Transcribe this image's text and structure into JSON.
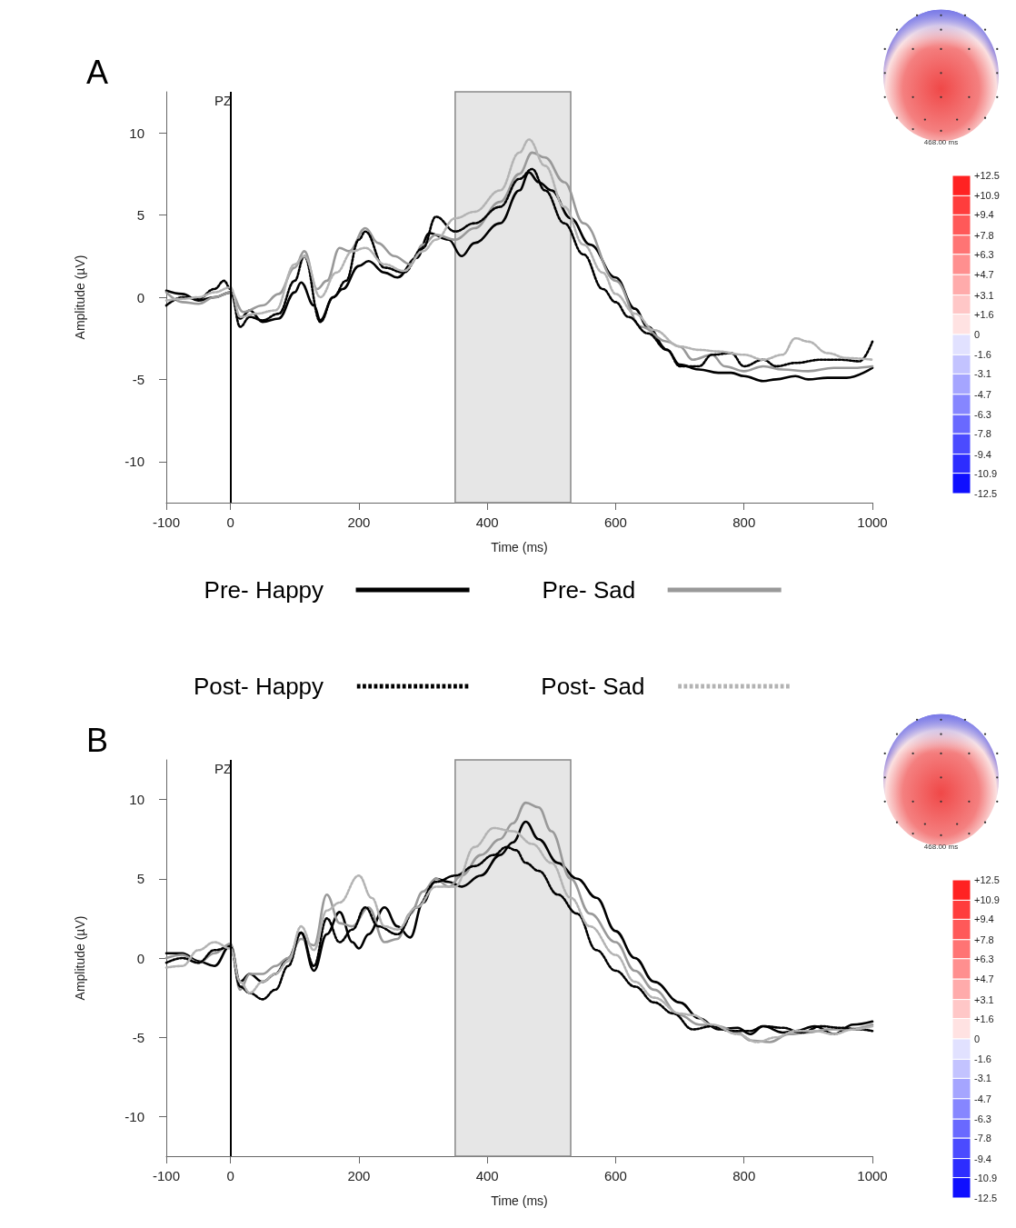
{
  "chart_data": [
    {
      "type": "line",
      "title": "A",
      "xlabel": "Time (ms)",
      "ylabel": "Amplitude (µV)",
      "annotations": [
        "PZ",
        "468.00 ms"
      ],
      "xlim": [
        -100,
        1000
      ],
      "xticks": [
        -100,
        0,
        200,
        400,
        600,
        800,
        1000
      ],
      "ylim": [
        -12.5,
        12.5
      ],
      "yticks": [
        -10,
        -5,
        0,
        5,
        10
      ],
      "grid": false,
      "legend": "bottom",
      "marker": "none",
      "clim": [
        -12.5,
        12.5
      ],
      "cticks": [
        {
          "value": 12.5,
          "label": "+12.5"
        },
        {
          "value": 10.9,
          "label": "+10.9"
        },
        {
          "value": 9.4,
          "label": "+9.4"
        },
        {
          "value": 7.8,
          "label": "+7.8"
        },
        {
          "value": 6.3,
          "label": "+6.3"
        },
        {
          "value": 4.7,
          "label": "+4.7"
        },
        {
          "value": 3.1,
          "label": "+3.1"
        },
        {
          "value": 1.6,
          "label": "+1.6"
        },
        0,
        -1.6,
        -3.1,
        -4.7,
        -6.3,
        -7.8,
        -9.4,
        -10.9,
        -12.5
      ],
      "bands": [
        {
          "axis": "x",
          "from": 350,
          "to": 530,
          "color": "#e6e6e6"
        }
      ],
      "ref_lines": [
        {
          "axis": "x",
          "value": 0,
          "color": "#000000"
        }
      ],
      "series": [
        {
          "name": "Pre- Happy",
          "color": "#000000",
          "line_style": "solid",
          "x": [
            -100,
            -75,
            -50,
            -25,
            0,
            15,
            30,
            50,
            75,
            100,
            110,
            130,
            140,
            160,
            175,
            200,
            215,
            240,
            260,
            290,
            310,
            340,
            360,
            380,
            420,
            450,
            465,
            480,
            500,
            530,
            560,
            600,
            630,
            650,
            680,
            700,
            730,
            760,
            780,
            800,
            830,
            850,
            880,
            900,
            930,
            960,
            1000
          ],
          "values": [
            0.4,
            0.2,
            -0.2,
            0,
            0.3,
            -1.3,
            -0.8,
            -1.5,
            -1.3,
            0.3,
            0.9,
            -0.5,
            -1.4,
            0,
            0.5,
            1.9,
            2.2,
            1.5,
            1.2,
            2.4,
            3.9,
            3.5,
            2.5,
            3.3,
            4.5,
            6.5,
            7.6,
            7.0,
            6.5,
            4.8,
            3.2,
            1.2,
            -0.7,
            -1.8,
            -3.2,
            -4.1,
            -4.4,
            -4.6,
            -4.6,
            -4.8,
            -5.1,
            -5.0,
            -4.8,
            -5.0,
            -4.9,
            -4.9,
            -4.3
          ]
        },
        {
          "name": "Pre- Sad",
          "color": "#999999",
          "line_style": "solid",
          "x": [
            -100,
            -75,
            -50,
            -25,
            0,
            20,
            50,
            75,
            100,
            115,
            135,
            150,
            170,
            185,
            210,
            230,
            255,
            280,
            300,
            320,
            350,
            380,
            420,
            450,
            470,
            490,
            520,
            550,
            600,
            640,
            680,
            700,
            720,
            750,
            770,
            800,
            830,
            860,
            900,
            940,
            970,
            1000
          ],
          "values": [
            0.3,
            -0.3,
            -0.4,
            0,
            0.3,
            -0.9,
            -0.5,
            0.2,
            1.8,
            2.8,
            0.5,
            1.0,
            3.0,
            2.8,
            4.2,
            3.3,
            2.5,
            2.0,
            3.2,
            3.8,
            3.5,
            4.2,
            5.8,
            7.5,
            8.8,
            8.5,
            7.0,
            4.5,
            1.0,
            -1.8,
            -2.7,
            -3.0,
            -3.8,
            -3.5,
            -4.2,
            -4.5,
            -4.2,
            -4.4,
            -4.5,
            -4.3,
            -4.3,
            -4.2
          ]
        },
        {
          "name": "Post- Happy",
          "color": "#000000",
          "line_style": "dotted",
          "x": [
            -100,
            -75,
            -50,
            -25,
            -10,
            0,
            15,
            30,
            50,
            75,
            100,
            115,
            140,
            160,
            180,
            200,
            210,
            240,
            270,
            300,
            320,
            350,
            380,
            420,
            450,
            470,
            490,
            520,
            550,
            580,
            600,
            620,
            650,
            680,
            700,
            730,
            750,
            780,
            800,
            830,
            850,
            880,
            920,
            950,
            980,
            1000
          ],
          "values": [
            -0.5,
            0,
            -0.1,
            0.5,
            1.0,
            0.5,
            -1.8,
            -1.2,
            -1.4,
            -1.0,
            1.0,
            2.5,
            -1.5,
            0,
            1.0,
            3.5,
            4.0,
            1.8,
            1.5,
            3.0,
            4.9,
            4.0,
            4.5,
            5.5,
            7.2,
            7.8,
            6.5,
            4.5,
            2.6,
            0.5,
            -0.3,
            -1.2,
            -2.2,
            -3.2,
            -4.2,
            -4.2,
            -3.5,
            -3.4,
            -4.2,
            -3.8,
            -4.2,
            -4.0,
            -3.8,
            -3.8,
            -3.9,
            -2.7
          ]
        },
        {
          "name": "Post- Sad",
          "color": "#b3b3b3",
          "line_style": "dotted",
          "x": [
            -100,
            -75,
            -50,
            -25,
            0,
            15,
            40,
            70,
            100,
            115,
            140,
            165,
            190,
            210,
            240,
            270,
            300,
            320,
            350,
            380,
            420,
            450,
            465,
            490,
            520,
            550,
            580,
            600,
            630,
            660,
            700,
            730,
            760,
            800,
            830,
            860,
            880,
            900,
            930,
            960,
            1000
          ],
          "values": [
            -0.2,
            -0.1,
            0,
            0.3,
            0.6,
            -1.2,
            -1.0,
            -0.8,
            2.0,
            2.5,
            0,
            1.5,
            2.8,
            3.0,
            2.0,
            1.6,
            2.8,
            3.5,
            4.8,
            5.2,
            6.5,
            8.8,
            9.6,
            8.0,
            5.5,
            3.2,
            1.5,
            0.2,
            -1.0,
            -2.0,
            -3.0,
            -3.2,
            -3.3,
            -3.5,
            -3.8,
            -3.5,
            -2.5,
            -2.7,
            -3.4,
            -3.7,
            -3.8
          ]
        }
      ]
    },
    {
      "type": "line",
      "title": "B",
      "xlabel": "Time (ms)",
      "ylabel": "Amplitude (µV)",
      "annotations": [
        "PZ",
        "468.00 ms"
      ],
      "xlim": [
        -100,
        1000
      ],
      "xticks": [
        -100,
        0,
        200,
        400,
        600,
        800,
        1000
      ],
      "ylim": [
        -12.5,
        12.5
      ],
      "yticks": [
        -10,
        -5,
        0,
        5,
        10
      ],
      "grid": false,
      "legend": false,
      "marker": "none",
      "clim": [
        -12.5,
        12.5
      ],
      "cticks": [
        {
          "value": 12.5,
          "label": "+12.5"
        },
        {
          "value": 10.9,
          "label": "+10.9"
        },
        {
          "value": 9.4,
          "label": "+9.4"
        },
        {
          "value": 7.8,
          "label": "+7.8"
        },
        {
          "value": 6.3,
          "label": "+6.3"
        },
        {
          "value": 4.7,
          "label": "+4.7"
        },
        {
          "value": 3.1,
          "label": "+3.1"
        },
        {
          "value": 1.6,
          "label": "+1.6"
        },
        0,
        -1.6,
        -3.1,
        -4.7,
        -6.3,
        -7.8,
        -9.4,
        -10.9,
        -12.5
      ],
      "bands": [
        {
          "axis": "x",
          "from": 350,
          "to": 530,
          "color": "#e6e6e6"
        }
      ],
      "ref_lines": [
        {
          "axis": "x",
          "value": 0,
          "color": "#000000"
        }
      ],
      "series": [
        {
          "color": "#000000",
          "line_style": "solid",
          "x": [
            -100,
            -75,
            -50,
            -25,
            0,
            15,
            30,
            50,
            70,
            90,
            110,
            130,
            150,
            170,
            190,
            200,
            215,
            240,
            260,
            280,
            300,
            320,
            340,
            360,
            390,
            420,
            440,
            460,
            480,
            510,
            540,
            570,
            600,
            630,
            660,
            700,
            730,
            760,
            790,
            810,
            830,
            860,
            880,
            910,
            940,
            970,
            1000
          ],
          "values": [
            0.3,
            0.3,
            -0.2,
            -0.5,
            0.8,
            -1.5,
            -1.0,
            -1.5,
            -1.0,
            0,
            1.6,
            -0.8,
            1.5,
            2.9,
            1.0,
            0.6,
            1.5,
            3.2,
            2.0,
            1.3,
            3.5,
            5.0,
            4.8,
            4.5,
            5.2,
            6.5,
            7.3,
            8.6,
            7.5,
            6.0,
            5.0,
            3.8,
            1.7,
            0,
            -1.5,
            -2.8,
            -3.8,
            -4.5,
            -4.4,
            -4.8,
            -4.3,
            -4.7,
            -4.6,
            -4.3,
            -4.8,
            -4.2,
            -4.0
          ]
        },
        {
          "color": "#999999",
          "line_style": "solid",
          "x": [
            -100,
            -75,
            -50,
            -25,
            0,
            15,
            30,
            50,
            70,
            90,
            110,
            130,
            150,
            170,
            190,
            215,
            240,
            260,
            280,
            300,
            320,
            340,
            360,
            390,
            420,
            440,
            460,
            480,
            500,
            530,
            560,
            600,
            630,
            660,
            700,
            730,
            760,
            790,
            810,
            840,
            870,
            900,
            930,
            960,
            1000
          ],
          "values": [
            0,
            0.2,
            -0.3,
            0.3,
            0.9,
            -2.0,
            -1.0,
            -1.0,
            -0.5,
            0,
            1.2,
            0.8,
            4.0,
            2.2,
            2.0,
            3.2,
            1.0,
            1.2,
            2.8,
            4.2,
            5.0,
            4.5,
            5.2,
            6.5,
            7.5,
            8.5,
            9.8,
            9.5,
            8.0,
            5.0,
            2.8,
            1.0,
            -0.8,
            -2.0,
            -3.6,
            -4.2,
            -4.3,
            -4.7,
            -5.2,
            -5.3,
            -4.8,
            -4.7,
            -4.5,
            -4.5,
            -4.2
          ]
        },
        {
          "color": "#000000",
          "line_style": "dotted",
          "x": [
            -100,
            -75,
            -50,
            -25,
            0,
            15,
            30,
            50,
            70,
            90,
            110,
            130,
            150,
            170,
            190,
            210,
            230,
            260,
            290,
            320,
            350,
            380,
            410,
            430,
            445,
            460,
            480,
            510,
            540,
            570,
            600,
            630,
            660,
            690,
            720,
            750,
            780,
            810,
            830,
            860,
            890,
            920,
            950,
            980,
            1000
          ],
          "values": [
            -0.3,
            0,
            -0.3,
            0.5,
            0.7,
            -1.8,
            -2.2,
            -2.6,
            -2.0,
            -0.5,
            1.6,
            -0.5,
            2.5,
            1.0,
            1.8,
            3.2,
            2.0,
            1.5,
            3.2,
            4.8,
            5.2,
            5.8,
            6.5,
            7.0,
            6.8,
            6.0,
            5.5,
            4.0,
            2.8,
            0.5,
            -0.8,
            -1.8,
            -2.8,
            -3.5,
            -4.5,
            -4.3,
            -4.6,
            -4.6,
            -4.3,
            -4.4,
            -4.7,
            -4.3,
            -4.4,
            -4.5,
            -4.6
          ]
        },
        {
          "color": "#b3b3b3",
          "line_style": "dotted",
          "x": [
            -100,
            -75,
            -50,
            -25,
            0,
            15,
            30,
            50,
            70,
            90,
            110,
            130,
            150,
            170,
            200,
            220,
            240,
            260,
            290,
            320,
            350,
            380,
            410,
            440,
            470,
            500,
            530,
            560,
            600,
            630,
            660,
            700,
            720,
            750,
            790,
            820,
            850,
            880,
            910,
            940,
            970,
            1000
          ],
          "values": [
            -0.6,
            -0.5,
            0.5,
            1.0,
            0.6,
            -1.5,
            -2.2,
            -1.5,
            -1.0,
            -0.2,
            2.0,
            0.5,
            3.0,
            3.5,
            5.2,
            3.8,
            2.0,
            1.8,
            3.2,
            4.5,
            4.5,
            7.0,
            8.2,
            8.0,
            7.2,
            6.0,
            3.8,
            2.0,
            0.2,
            -1.5,
            -2.5,
            -3.5,
            -3.6,
            -4.2,
            -4.8,
            -5.3,
            -5.0,
            -4.6,
            -4.6,
            -4.8,
            -4.5,
            -4.3
          ]
        }
      ]
    }
  ]
}
